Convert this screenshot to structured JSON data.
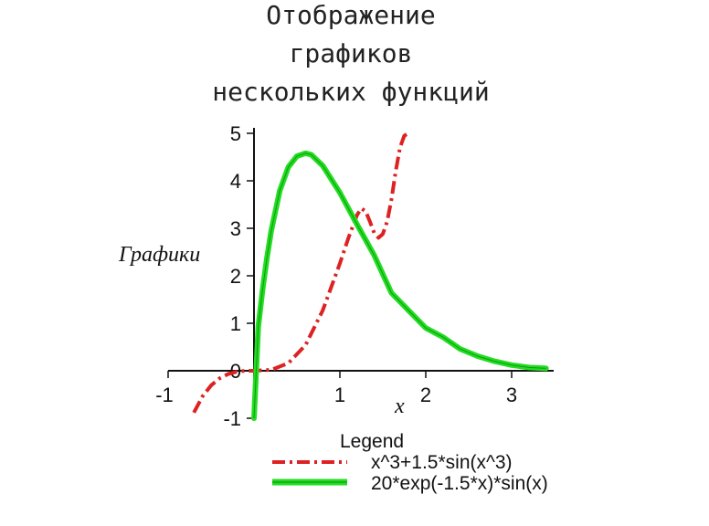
{
  "chart_data": {
    "type": "line",
    "title_lines": [
      "Отображение",
      "графиков",
      "нескольких функций"
    ],
    "xlabel": "x",
    "ylabel": "Графики",
    "xlim": [
      -1,
      3.5
    ],
    "ylim": [
      -1,
      5
    ],
    "x_ticks": [
      "-1",
      "0",
      "1",
      "2",
      "3"
    ],
    "y_ticks": [
      "-1",
      "0",
      "1",
      "2",
      "3",
      "4",
      "5"
    ],
    "grid": false,
    "legend": {
      "title": "Legend",
      "position": "bottom"
    },
    "series": [
      {
        "name": "x^3+1.5*sin(x^3)",
        "color": "#dd2222",
        "style": "dash-dot",
        "x": [
          -0.7,
          -0.6,
          -0.5,
          -0.4,
          -0.3,
          -0.2,
          -0.1,
          0,
          0.2,
          0.4,
          0.6,
          0.8,
          1.0,
          1.1,
          1.2,
          1.25,
          1.3,
          1.35,
          1.4,
          1.45,
          1.5,
          1.55,
          1.6,
          1.65,
          1.7,
          1.75,
          1.8
        ],
        "y": [
          -0.88,
          -0.54,
          -0.31,
          -0.16,
          -0.07,
          -0.02,
          0.0,
          0.0,
          0.02,
          0.16,
          0.54,
          1.27,
          2.26,
          2.8,
          3.28,
          3.42,
          3.36,
          3.14,
          2.9,
          2.8,
          2.88,
          3.14,
          3.6,
          4.2,
          4.7,
          4.95,
          5.0
        ]
      },
      {
        "name": "20*exp(-1.5*x)*sin(x)",
        "color": "#22dd22",
        "style": "solid",
        "x": [
          0,
          0.05,
          0.1,
          0.15,
          0.2,
          0.3,
          0.4,
          0.5,
          0.6,
          0.667,
          0.8,
          1.0,
          1.2,
          1.4,
          1.6,
          1.8,
          2.0,
          2.2,
          2.4,
          2.6,
          2.8,
          3.0,
          3.2,
          3.4
        ],
        "y": [
          -1.0,
          0.93,
          1.71,
          2.37,
          2.94,
          3.79,
          4.29,
          4.52,
          4.58,
          4.55,
          4.32,
          3.75,
          3.08,
          2.43,
          1.64,
          1.27,
          0.9,
          0.71,
          0.46,
          0.31,
          0.2,
          0.12,
          0.07,
          0.05
        ]
      }
    ]
  }
}
